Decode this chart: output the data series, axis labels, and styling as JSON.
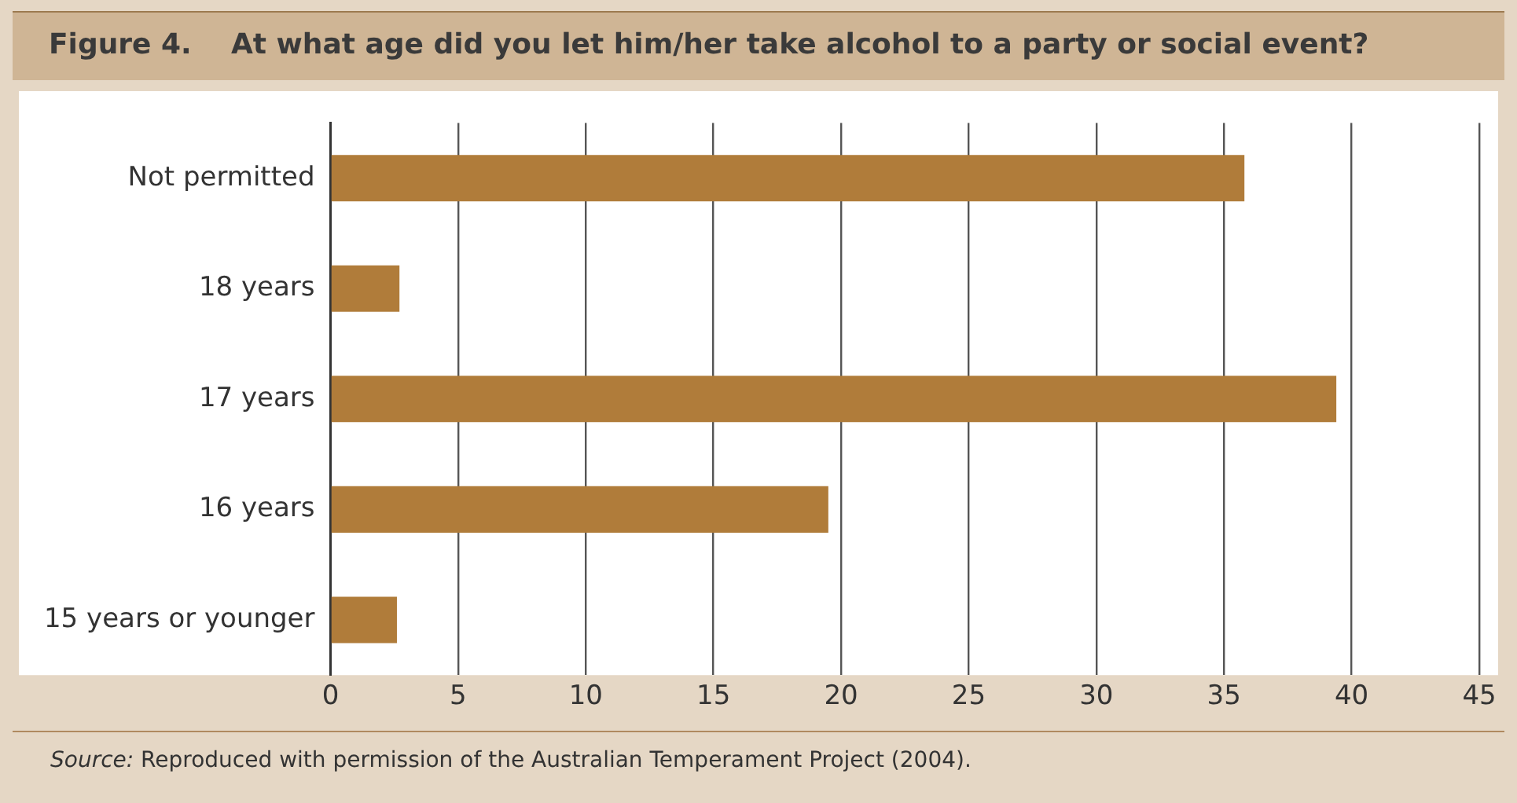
{
  "chart_data": {
    "type": "bar",
    "orientation": "horizontal",
    "title": "Figure 4.    At what age did you let him/her take alcohol to a party or social event?",
    "categories": [
      "Not permitted",
      "18 years",
      "17 years",
      "16 years",
      "15 years or younger"
    ],
    "values": [
      35.8,
      2.7,
      39.4,
      19.5,
      2.6
    ],
    "color": "#b07c3a",
    "xlim": [
      0,
      45
    ],
    "xticks": [
      0,
      5,
      10,
      15,
      20,
      25,
      30,
      35,
      40,
      45
    ],
    "grid": "x",
    "legend": false,
    "annotations": [
      "Source: Reproduced with permission of the Australian Temperament Project (2004)."
    ]
  }
}
